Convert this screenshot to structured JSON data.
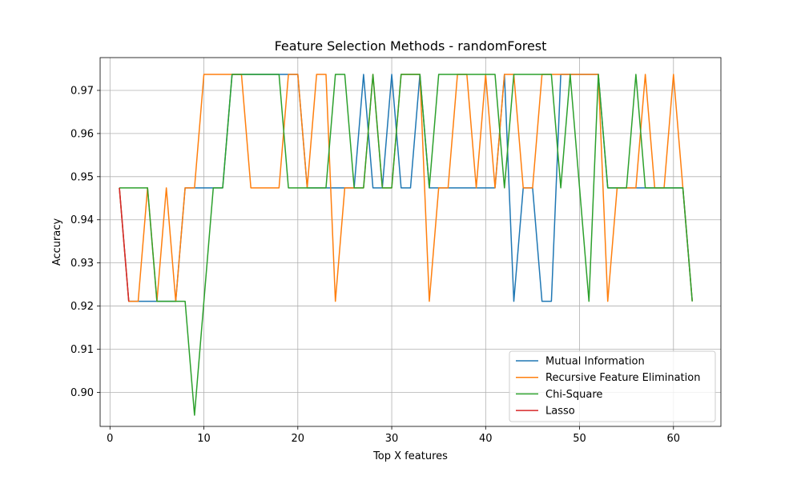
{
  "chart_data": {
    "type": "line",
    "title": "Feature Selection Methods - randomForest",
    "xlabel": "Top X features",
    "ylabel": "Accuracy",
    "xlim": [
      -1.05,
      65.05
    ],
    "ylim": [
      0.8921,
      0.9776
    ],
    "xticks": [
      0,
      10,
      20,
      30,
      40,
      50,
      60
    ],
    "yticks": [
      0.9,
      0.91,
      0.92,
      0.93,
      0.94,
      0.95,
      0.96,
      0.97
    ],
    "ytick_labels": [
      "0.90",
      "0.91",
      "0.92",
      "0.93",
      "0.94",
      "0.95",
      "0.96",
      "0.97"
    ],
    "grid": true,
    "legend_position": "lower-right",
    "series": [
      {
        "name": "Mutual Information",
        "color": "#1f77b4",
        "x": [
          1,
          2,
          3,
          4,
          5,
          6,
          7,
          8,
          9,
          10,
          11,
          12,
          13,
          14,
          15,
          16,
          17,
          18,
          19,
          20,
          21,
          22,
          23,
          24,
          25,
          26,
          27,
          28,
          29,
          30,
          31,
          32,
          33,
          34,
          35,
          36,
          37,
          38,
          39,
          40,
          41,
          42,
          43,
          44,
          45,
          46,
          47,
          48,
          49,
          50,
          51,
          52,
          53,
          54,
          55,
          56,
          57,
          58,
          59,
          60,
          61,
          62
        ],
        "y": [
          0.9474,
          0.9211,
          0.9211,
          0.9211,
          0.9211,
          0.9211,
          0.9211,
          0.9474,
          0.9474,
          0.9474,
          0.9474,
          0.9474,
          0.9737,
          0.9737,
          0.9737,
          0.9737,
          0.9737,
          0.9737,
          0.9737,
          0.9737,
          0.9474,
          0.9474,
          0.9474,
          0.9474,
          0.9474,
          0.9474,
          0.9737,
          0.9474,
          0.9474,
          0.9737,
          0.9474,
          0.9474,
          0.9737,
          0.9474,
          0.9474,
          0.9474,
          0.9474,
          0.9474,
          0.9474,
          0.9474,
          0.9474,
          0.9737,
          0.9211,
          0.9474,
          0.9474,
          0.9211,
          0.9211,
          0.9737,
          0.9737,
          0.9737,
          0.9737,
          0.9737,
          0.9474,
          0.9474,
          0.9474,
          0.9474,
          0.9474,
          0.9474,
          0.9474,
          0.9474,
          0.9474,
          0.9211
        ]
      },
      {
        "name": "Recursive Feature Elimination",
        "color": "#ff7f0e",
        "x": [
          1,
          2,
          3,
          4,
          5,
          6,
          7,
          8,
          9,
          10,
          11,
          12,
          13,
          14,
          15,
          16,
          17,
          18,
          19,
          20,
          21,
          22,
          23,
          24,
          25,
          26,
          27,
          28,
          29,
          30,
          31,
          32,
          33,
          34,
          35,
          36,
          37,
          38,
          39,
          40,
          41,
          42,
          43,
          44,
          45,
          46,
          47,
          48,
          49,
          50,
          51,
          52,
          53,
          54,
          55,
          56,
          57,
          58,
          59,
          60,
          61,
          62
        ],
        "y": [
          0.9474,
          0.9211,
          0.9211,
          0.9474,
          0.9211,
          0.9474,
          0.9211,
          0.9474,
          0.9474,
          0.9737,
          0.9737,
          0.9737,
          0.9737,
          0.9737,
          0.9474,
          0.9474,
          0.9474,
          0.9474,
          0.9737,
          0.9737,
          0.9474,
          0.9737,
          0.9737,
          0.9211,
          0.9474,
          0.9474,
          0.9474,
          0.9737,
          0.9474,
          0.9474,
          0.9737,
          0.9737,
          0.9737,
          0.9211,
          0.9474,
          0.9474,
          0.9737,
          0.9737,
          0.9474,
          0.9737,
          0.9474,
          0.9737,
          0.9737,
          0.9474,
          0.9474,
          0.9737,
          0.9737,
          0.9737,
          0.9737,
          0.9737,
          0.9737,
          0.9737,
          0.9211,
          0.9474,
          0.9474,
          0.9474,
          0.9737,
          0.9474,
          0.9474,
          0.9737,
          0.9474,
          0.9211
        ]
      },
      {
        "name": "Chi-Square",
        "color": "#2ca02c",
        "x": [
          1,
          2,
          3,
          4,
          5,
          6,
          7,
          8,
          9,
          10,
          11,
          12,
          13,
          14,
          15,
          16,
          17,
          18,
          19,
          20,
          21,
          22,
          23,
          24,
          25,
          26,
          27,
          28,
          29,
          30,
          31,
          32,
          33,
          34,
          35,
          36,
          37,
          38,
          39,
          40,
          41,
          42,
          43,
          44,
          45,
          46,
          47,
          48,
          49,
          50,
          51,
          52,
          53,
          54,
          55,
          56,
          57,
          58,
          59,
          60,
          61,
          62
        ],
        "y": [
          0.9474,
          0.9474,
          0.9474,
          0.9474,
          0.9211,
          0.9211,
          0.9211,
          0.9211,
          0.8947,
          0.9211,
          0.9474,
          0.9474,
          0.9737,
          0.9737,
          0.9737,
          0.9737,
          0.9737,
          0.9737,
          0.9474,
          0.9474,
          0.9474,
          0.9474,
          0.9474,
          0.9737,
          0.9737,
          0.9474,
          0.9474,
          0.9737,
          0.9474,
          0.9474,
          0.9737,
          0.9737,
          0.9737,
          0.9474,
          0.9737,
          0.9737,
          0.9737,
          0.9737,
          0.9737,
          0.9737,
          0.9737,
          0.9474,
          0.9737,
          0.9737,
          0.9737,
          0.9737,
          0.9737,
          0.9474,
          0.9737,
          0.9474,
          0.9211,
          0.9737,
          0.9474,
          0.9474,
          0.9474,
          0.9737,
          0.9474,
          0.9474,
          0.9474,
          0.9474,
          0.9474,
          0.9211
        ]
      },
      {
        "name": "Lasso",
        "color": "#d62728",
        "x": [
          1,
          2
        ],
        "y": [
          0.9474,
          0.9211
        ]
      }
    ]
  }
}
